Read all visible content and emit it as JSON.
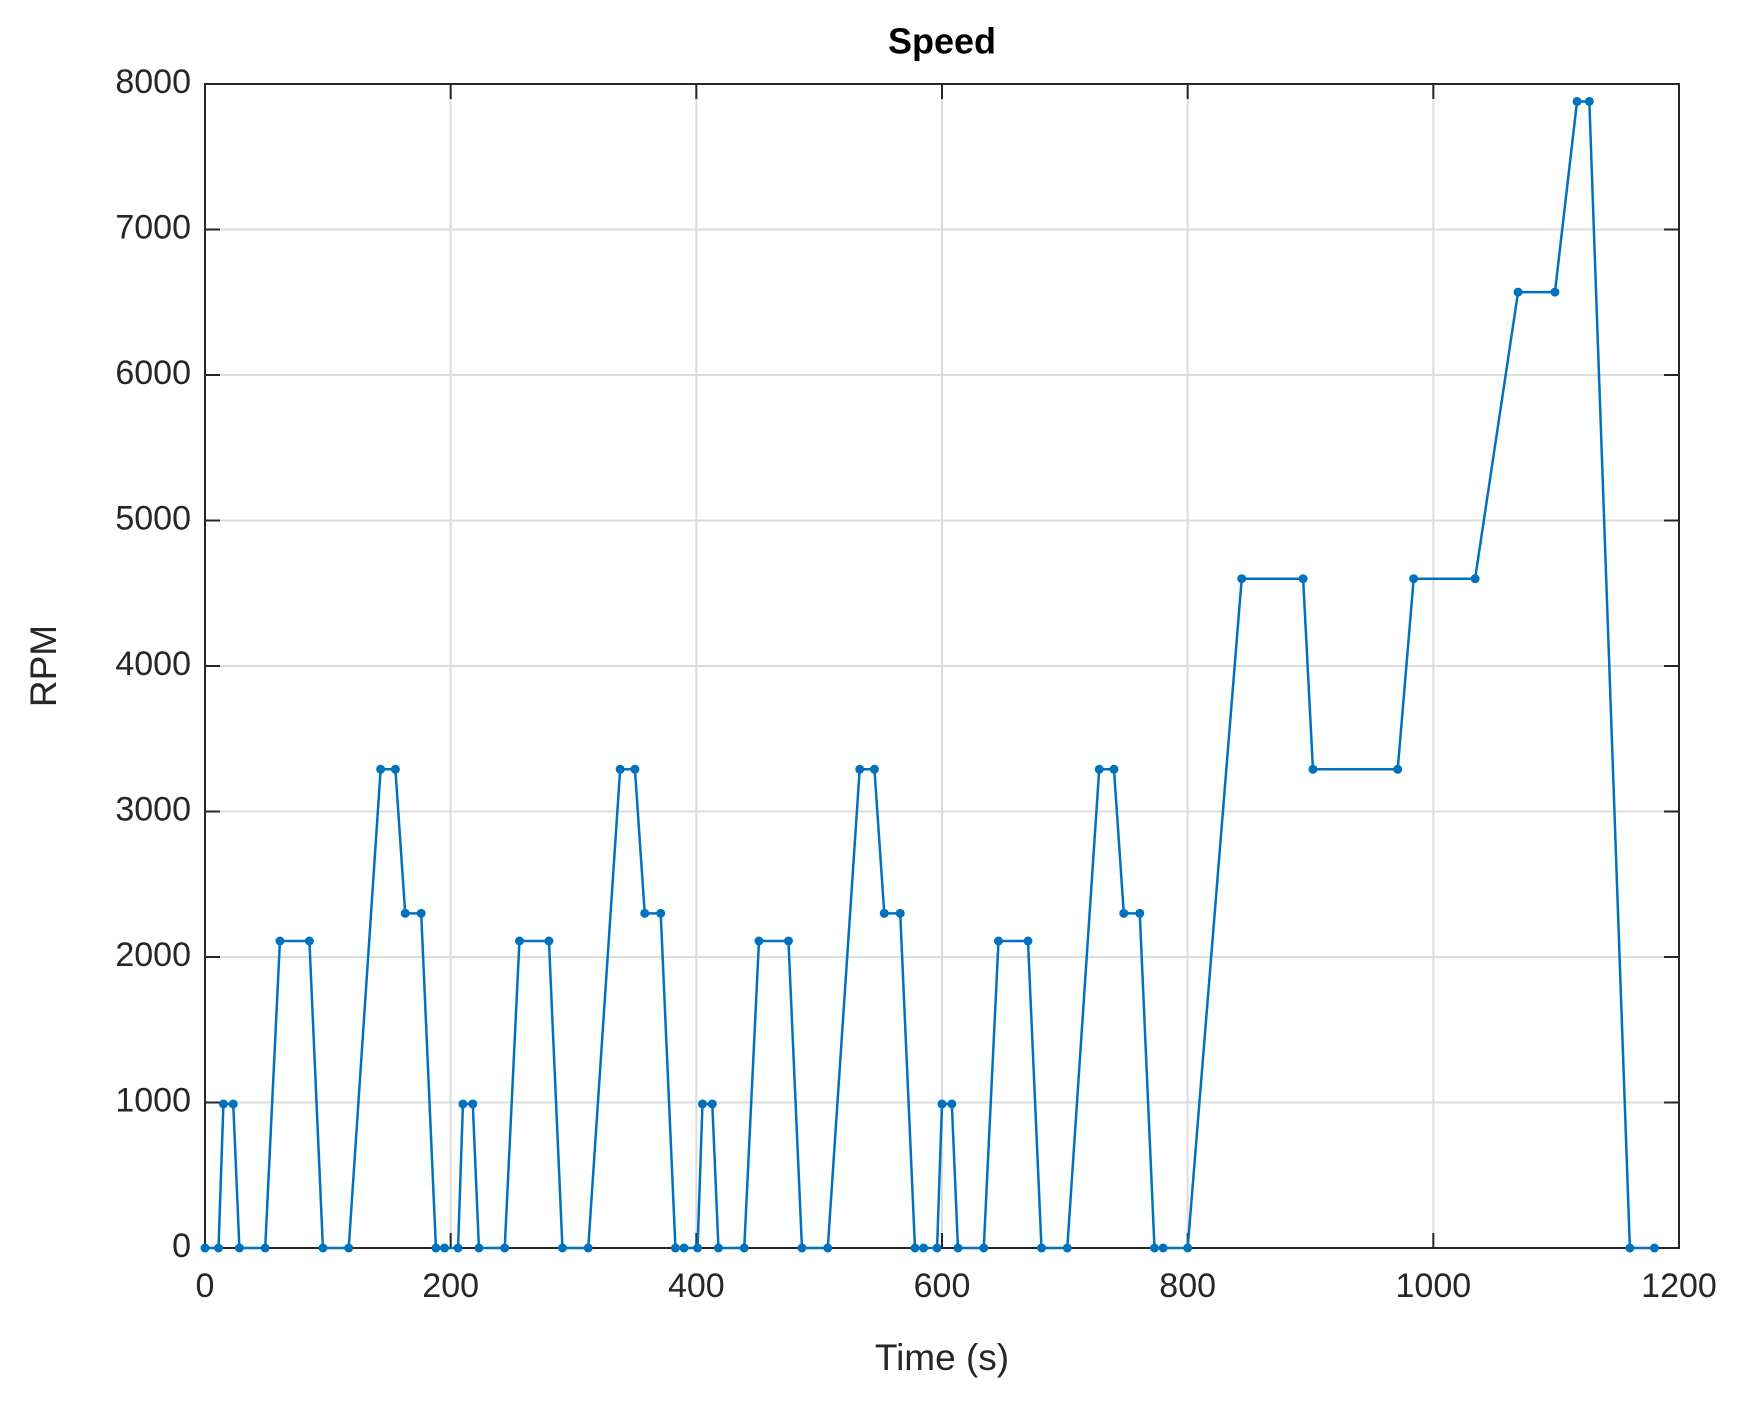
{
  "chart_data": {
    "type": "line",
    "title": "Speed",
    "x_label": "Time (s)",
    "y_label": "RPM",
    "x": [
      0,
      11,
      15,
      23,
      28,
      49,
      61,
      85,
      96,
      117,
      143,
      155,
      163,
      176,
      188,
      195,
      206,
      210,
      218,
      223,
      244,
      256,
      280,
      291,
      312,
      338,
      350,
      358,
      371,
      383,
      390,
      401,
      405,
      413,
      418,
      439,
      451,
      475,
      486,
      507,
      533,
      545,
      553,
      566,
      578,
      585,
      596,
      600,
      608,
      613,
      634,
      646,
      670,
      681,
      702,
      728,
      740,
      748,
      761,
      773,
      780,
      800,
      844,
      894,
      902,
      971,
      984,
      1034,
      1069,
      1099,
      1117,
      1127,
      1160,
      1180
    ],
    "series": [
      {
        "name": "Speed",
        "color": "#0072bd",
        "values": [
          0,
          0,
          990,
          990,
          0,
          0,
          2110,
          2110,
          0,
          0,
          3290,
          3290,
          2300,
          2300,
          0,
          0,
          0,
          990,
          990,
          0,
          0,
          2110,
          2110,
          0,
          0,
          3290,
          3290,
          2300,
          2300,
          0,
          0,
          0,
          990,
          990,
          0,
          0,
          2110,
          2110,
          0,
          0,
          3290,
          3290,
          2300,
          2300,
          0,
          0,
          0,
          990,
          990,
          0,
          0,
          2110,
          2110,
          0,
          0,
          3290,
          3290,
          2300,
          2300,
          0,
          0,
          0,
          4600,
          4600,
          3290,
          3290,
          4600,
          4600,
          6570,
          6570,
          7880,
          7880,
          0,
          0
        ]
      }
    ],
    "xlim": [
      0,
      1200
    ],
    "xticks": [
      0,
      200,
      400,
      600,
      800,
      1000,
      1200
    ],
    "ylim": [
      0,
      8000
    ],
    "yticks": [
      0,
      1000,
      2000,
      3000,
      4000,
      5000,
      6000,
      7000,
      8000
    ],
    "grid": true
  }
}
